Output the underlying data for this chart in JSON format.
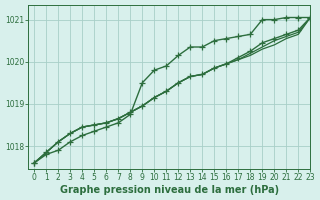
{
  "title": "Graphe pression niveau de la mer (hPa)",
  "bg_color": "#d8f0ec",
  "grid_color": "#a8cfc8",
  "line_color": "#2d6e3e",
  "xlim": [
    -0.5,
    23
  ],
  "ylim": [
    1017.45,
    1021.35
  ],
  "yticks": [
    1018,
    1019,
    1020,
    1021
  ],
  "xticks": [
    0,
    1,
    2,
    3,
    4,
    5,
    6,
    7,
    8,
    9,
    10,
    11,
    12,
    13,
    14,
    15,
    16,
    17,
    18,
    19,
    20,
    21,
    22,
    23
  ],
  "series": [
    {
      "y": [
        1017.6,
        1017.8,
        1017.9,
        1018.1,
        1018.25,
        1018.35,
        1018.45,
        1018.55,
        1018.75,
        1019.5,
        1019.8,
        1019.9,
        1020.15,
        1020.35,
        1020.35,
        1020.5,
        1020.55,
        1020.6,
        1020.65,
        1021.0,
        1021.0,
        1021.05,
        1021.05,
        1021.05
      ],
      "marker": "+",
      "lw": 1.0,
      "ms": 4
    },
    {
      "y": [
        1017.6,
        1017.85,
        1018.1,
        1018.3,
        1018.45,
        1018.5,
        1018.55,
        1018.65,
        1018.8,
        1018.95,
        1019.15,
        1019.3,
        1019.5,
        1019.65,
        1019.7,
        1019.85,
        1019.95,
        1020.05,
        1020.15,
        1020.3,
        1020.4,
        1020.55,
        1020.65,
        1021.05
      ],
      "marker": "None",
      "lw": 0.9,
      "ms": 0
    },
    {
      "y": [
        1017.6,
        1017.85,
        1018.1,
        1018.3,
        1018.45,
        1018.5,
        1018.55,
        1018.65,
        1018.8,
        1018.95,
        1019.15,
        1019.3,
        1019.5,
        1019.65,
        1019.7,
        1019.85,
        1019.95,
        1020.05,
        1020.2,
        1020.35,
        1020.5,
        1020.6,
        1020.7,
        1021.05
      ],
      "marker": "None",
      "lw": 0.9,
      "ms": 0
    },
    {
      "y": [
        1017.6,
        1017.85,
        1018.1,
        1018.3,
        1018.45,
        1018.5,
        1018.55,
        1018.65,
        1018.8,
        1018.95,
        1019.15,
        1019.3,
        1019.5,
        1019.65,
        1019.7,
        1019.85,
        1019.95,
        1020.1,
        1020.25,
        1020.45,
        1020.55,
        1020.65,
        1020.75,
        1021.05
      ],
      "marker": "+",
      "lw": 1.0,
      "ms": 4
    }
  ],
  "font_size_title": 7.0,
  "tick_fontsize": 5.5
}
